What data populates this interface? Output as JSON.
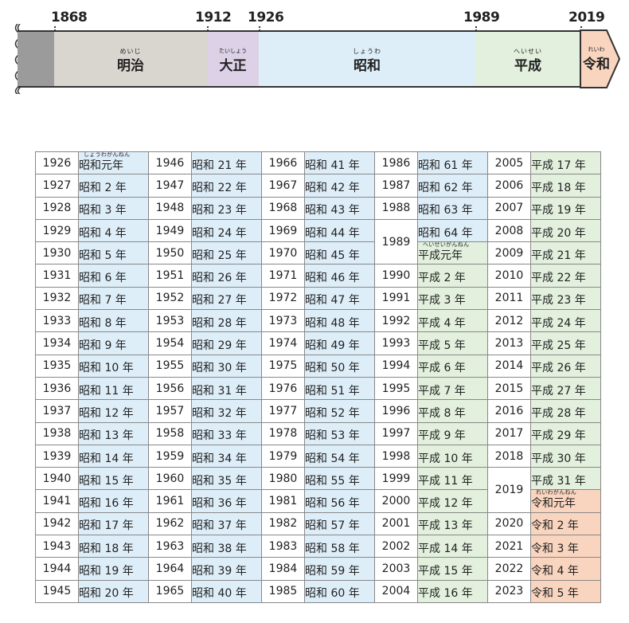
{
  "timeline": {
    "years": [
      "1868",
      "1912",
      "1926",
      "1989",
      "2019"
    ],
    "eras": [
      {
        "name": "明治",
        "ruby": "めいじ"
      },
      {
        "name": "大正",
        "ruby": "たいしょう"
      },
      {
        "name": "昭和",
        "ruby": "しょうわ"
      },
      {
        "name": "平成",
        "ruby": "へいせい"
      },
      {
        "name": "令和",
        "ruby": "れいわ"
      }
    ],
    "colors": {
      "pre": "#9b9b9b",
      "meiji": "#d9d5cf",
      "taisho": "#dcd1e7",
      "showa": "#deeef9",
      "heisei": "#e2f0dd",
      "reiwa": "#f9d5bf"
    }
  },
  "ruby": {
    "showa_gannen": "しょうわがんねん",
    "heisei_gannen": "へいせいがんねん",
    "reiwa_gannen": "れいわがんねん"
  },
  "table": {
    "columns": [
      {
        "rows": [
          [
            "1926",
            "昭和元年"
          ],
          [
            "1927",
            "昭和 2 年"
          ],
          [
            "1928",
            "昭和 3 年"
          ],
          [
            "1929",
            "昭和 4 年"
          ],
          [
            "1930",
            "昭和 5 年"
          ],
          [
            "1931",
            "昭和 6 年"
          ],
          [
            "1932",
            "昭和 7 年"
          ],
          [
            "1933",
            "昭和 8 年"
          ],
          [
            "1934",
            "昭和 9 年"
          ],
          [
            "1935",
            "昭和 10 年"
          ],
          [
            "1936",
            "昭和 11 年"
          ],
          [
            "1937",
            "昭和 12 年"
          ],
          [
            "1938",
            "昭和 13 年"
          ],
          [
            "1939",
            "昭和 14 年"
          ],
          [
            "1940",
            "昭和 15 年"
          ],
          [
            "1941",
            "昭和 16 年"
          ],
          [
            "1942",
            "昭和 17 年"
          ],
          [
            "1943",
            "昭和 18 年"
          ],
          [
            "1944",
            "昭和 19 年"
          ],
          [
            "1945",
            "昭和 20 年"
          ]
        ]
      },
      {
        "rows": [
          [
            "1946",
            "昭和 21 年"
          ],
          [
            "1947",
            "昭和 22 年"
          ],
          [
            "1948",
            "昭和 23 年"
          ],
          [
            "1949",
            "昭和 24 年"
          ],
          [
            "1950",
            "昭和 25 年"
          ],
          [
            "1951",
            "昭和 26 年"
          ],
          [
            "1952",
            "昭和 27 年"
          ],
          [
            "1953",
            "昭和 28 年"
          ],
          [
            "1954",
            "昭和 29 年"
          ],
          [
            "1955",
            "昭和 30 年"
          ],
          [
            "1956",
            "昭和 31 年"
          ],
          [
            "1957",
            "昭和 32 年"
          ],
          [
            "1958",
            "昭和 33 年"
          ],
          [
            "1959",
            "昭和 34 年"
          ],
          [
            "1960",
            "昭和 35 年"
          ],
          [
            "1961",
            "昭和 36 年"
          ],
          [
            "1962",
            "昭和 37 年"
          ],
          [
            "1963",
            "昭和 38 年"
          ],
          [
            "1964",
            "昭和 39 年"
          ],
          [
            "1965",
            "昭和 40 年"
          ]
        ]
      },
      {
        "rows": [
          [
            "1966",
            "昭和 41 年"
          ],
          [
            "1967",
            "昭和 42 年"
          ],
          [
            "1968",
            "昭和 43 年"
          ],
          [
            "1969",
            "昭和 44 年"
          ],
          [
            "1970",
            "昭和 45 年"
          ],
          [
            "1971",
            "昭和 46 年"
          ],
          [
            "1972",
            "昭和 47 年"
          ],
          [
            "1973",
            "昭和 48 年"
          ],
          [
            "1974",
            "昭和 49 年"
          ],
          [
            "1975",
            "昭和 50 年"
          ],
          [
            "1976",
            "昭和 51 年"
          ],
          [
            "1977",
            "昭和 52 年"
          ],
          [
            "1978",
            "昭和 53 年"
          ],
          [
            "1979",
            "昭和 54 年"
          ],
          [
            "1980",
            "昭和 55 年"
          ],
          [
            "1981",
            "昭和 56 年"
          ],
          [
            "1982",
            "昭和 57 年"
          ],
          [
            "1983",
            "昭和 58 年"
          ],
          [
            "1984",
            "昭和 59 年"
          ],
          [
            "1985",
            "昭和 60 年"
          ]
        ]
      },
      {
        "rows": [
          [
            "1986",
            "昭和 61 年"
          ],
          [
            "1987",
            "昭和 62 年"
          ],
          [
            "1988",
            "昭和 63 年"
          ],
          [
            "1989",
            "昭和 64 年"
          ],
          [
            "",
            "平成元年"
          ],
          [
            "1990",
            "平成 2 年"
          ],
          [
            "1991",
            "平成 3 年"
          ],
          [
            "1992",
            "平成 4 年"
          ],
          [
            "1993",
            "平成 5 年"
          ],
          [
            "1994",
            "平成 6 年"
          ],
          [
            "1995",
            "平成 7 年"
          ],
          [
            "1996",
            "平成 8 年"
          ],
          [
            "1997",
            "平成 9 年"
          ],
          [
            "1998",
            "平成 10 年"
          ],
          [
            "1999",
            "平成 11 年"
          ],
          [
            "2000",
            "平成 12 年"
          ],
          [
            "2001",
            "平成 13 年"
          ],
          [
            "2002",
            "平成 14 年"
          ],
          [
            "2003",
            "平成 15 年"
          ],
          [
            "2004",
            "平成 16 年"
          ]
        ]
      },
      {
        "rows": [
          [
            "2005",
            "平成 17 年"
          ],
          [
            "2006",
            "平成 18 年"
          ],
          [
            "2007",
            "平成 19 年"
          ],
          [
            "2008",
            "平成 20 年"
          ],
          [
            "2009",
            "平成 21 年"
          ],
          [
            "2010",
            "平成 22 年"
          ],
          [
            "2011",
            "平成 23 年"
          ],
          [
            "2012",
            "平成 24 年"
          ],
          [
            "2013",
            "平成 25 年"
          ],
          [
            "2014",
            "平成 26 年"
          ],
          [
            "2015",
            "平成 27 年"
          ],
          [
            "2016",
            "平成 28 年"
          ],
          [
            "2017",
            "平成 29 年"
          ],
          [
            "2018",
            "平成 30 年"
          ],
          [
            "2019",
            "平成 31 年"
          ],
          [
            "",
            "令和元年"
          ],
          [
            "2020",
            "令和 2 年"
          ],
          [
            "2021",
            "令和 3 年"
          ],
          [
            "2022",
            "令和 4 年"
          ],
          [
            "2023",
            "令和 5 年"
          ]
        ]
      }
    ]
  }
}
